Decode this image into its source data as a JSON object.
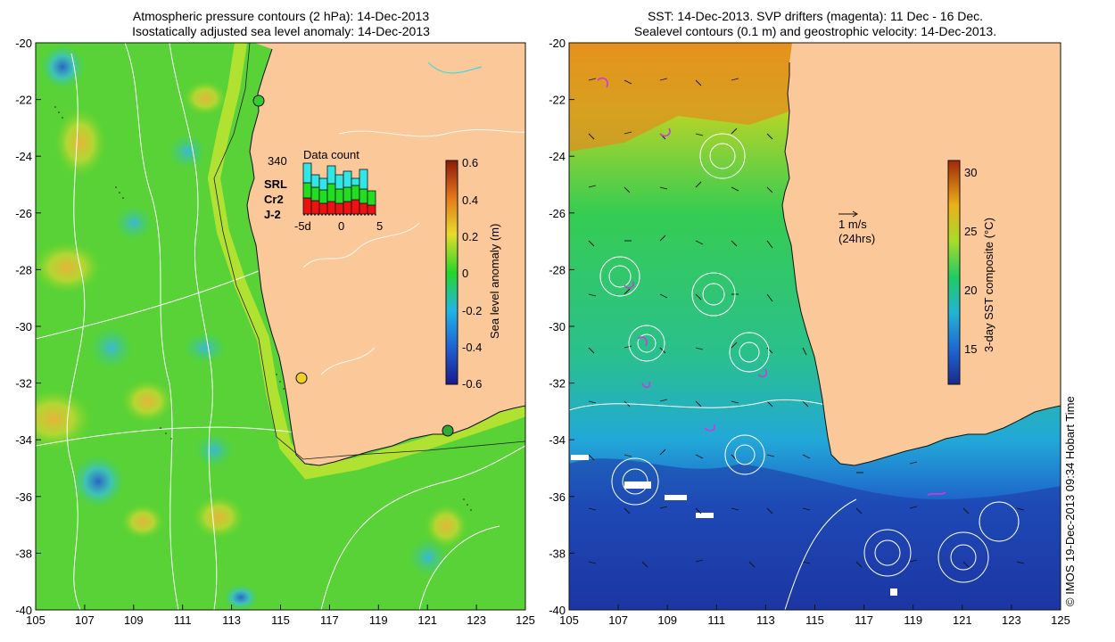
{
  "left_panel": {
    "title_line1": "Atmospheric pressure contours (2 hPa): 14-Dec-2013",
    "title_line2": "Isostatically adjusted sea level anomaly: 14-Dec-2013",
    "colorbar": {
      "label": "Sea level anomaly (m)",
      "ticks": [
        "0.6",
        "0.4",
        "0.2",
        "0",
        "-0.2",
        "-0.4",
        "-0.6"
      ],
      "range": [
        -0.6,
        0.6
      ]
    },
    "inset": {
      "title": "Data count",
      "max_label": "340",
      "legend": [
        {
          "name": "SRL",
          "color": "#33e6e6"
        },
        {
          "name": "Cr2",
          "color": "#22dd22"
        },
        {
          "name": "J-2",
          "color": "#ee1111"
        }
      ],
      "x_ticks": [
        "-5d",
        "0",
        "5"
      ]
    }
  },
  "right_panel": {
    "title_line1": "SST: 14-Dec-2013. SVP drifters (magenta): 11 Dec - 16 Dec.",
    "title_line2": "Sealevel contours (0.1 m) and geostrophic velocity: 14-Dec-2013.",
    "colorbar": {
      "label": "3-day SST composite (°C)",
      "ticks": [
        "30",
        "25",
        "20",
        "15"
      ],
      "range": [
        12,
        31
      ]
    },
    "vector_scale": {
      "label1": "1 m/s",
      "label2": "(24hrs)"
    }
  },
  "axes": {
    "lon_ticks": [
      "105",
      "107",
      "109",
      "111",
      "113",
      "115",
      "117",
      "119",
      "121",
      "123",
      "125"
    ],
    "lat_ticks": [
      "-20",
      "-22",
      "-24",
      "-26",
      "-28",
      "-30",
      "-32",
      "-34",
      "-36",
      "-38",
      "-40"
    ]
  },
  "credit": "© IMOS 19-Dec-2013 09:34 Hobart Time",
  "colors": {
    "land": "#fac899",
    "coast": "#000000",
    "contour": "#ffffff"
  }
}
